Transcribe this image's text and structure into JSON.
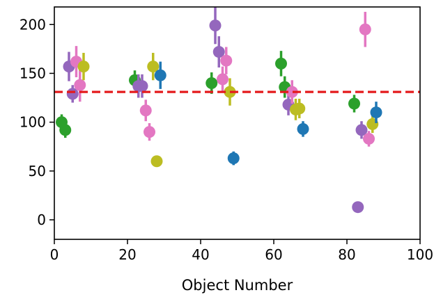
{
  "chart_data": {
    "type": "scatter",
    "title": "",
    "xlabel": "Object Number",
    "ylabel": "",
    "xlim": [
      0,
      100
    ],
    "ylim": [
      -20,
      218
    ],
    "xticks": [
      0,
      20,
      40,
      60,
      80,
      100
    ],
    "yticks": [
      0,
      50,
      100,
      150,
      200
    ],
    "grid": false,
    "reference_line": {
      "y": 131,
      "style": "dashed",
      "color": "#e41a1c"
    },
    "colors": {
      "blue": "#1f77b4",
      "green": "#2ca02c",
      "purple": "#9467bd",
      "pink": "#e377c2",
      "olive": "#bcbd22"
    },
    "points": [
      {
        "x": 2,
        "y": 100,
        "err": 8,
        "color": "green"
      },
      {
        "x": 3,
        "y": 92,
        "err": 8,
        "color": "green"
      },
      {
        "x": 4,
        "y": 157,
        "err": 15,
        "color": "purple"
      },
      {
        "x": 5,
        "y": 129,
        "err": 9,
        "color": "purple"
      },
      {
        "x": 6,
        "y": 162,
        "err": 16,
        "color": "pink"
      },
      {
        "x": 7,
        "y": 138,
        "err": 17,
        "color": "pink"
      },
      {
        "x": 8,
        "y": 157,
        "err": 14,
        "color": "olive"
      },
      {
        "x": 22,
        "y": 143,
        "err": 10,
        "color": "green"
      },
      {
        "x": 23,
        "y": 137,
        "err": 12,
        "color": "purple"
      },
      {
        "x": 24,
        "y": 137,
        "err": 12,
        "color": "purple"
      },
      {
        "x": 25,
        "y": 112,
        "err": 11,
        "color": "pink"
      },
      {
        "x": 26,
        "y": 90,
        "err": 9,
        "color": "pink"
      },
      {
        "x": 27,
        "y": 157,
        "err": 14,
        "color": "olive"
      },
      {
        "x": 28,
        "y": 60,
        "err": 0,
        "color": "olive"
      },
      {
        "x": 29,
        "y": 148,
        "err": 14,
        "color": "blue"
      },
      {
        "x": 43,
        "y": 140,
        "err": 11,
        "color": "green"
      },
      {
        "x": 44,
        "y": 199,
        "err": 19,
        "color": "purple"
      },
      {
        "x": 45,
        "y": 172,
        "err": 16,
        "color": "purple"
      },
      {
        "x": 46,
        "y": 144,
        "err": 13,
        "color": "pink"
      },
      {
        "x": 47,
        "y": 163,
        "err": 14,
        "color": "pink"
      },
      {
        "x": 48,
        "y": 131,
        "err": 14,
        "color": "olive"
      },
      {
        "x": 49,
        "y": 63,
        "err": 7,
        "color": "blue"
      },
      {
        "x": 62,
        "y": 160,
        "err": 13,
        "color": "green"
      },
      {
        "x": 63,
        "y": 136,
        "err": 11,
        "color": "green"
      },
      {
        "x": 64,
        "y": 118,
        "err": 11,
        "color": "purple"
      },
      {
        "x": 65,
        "y": 131,
        "err": 12,
        "color": "pink"
      },
      {
        "x": 66,
        "y": 113,
        "err": 11,
        "color": "olive"
      },
      {
        "x": 67,
        "y": 114,
        "err": 10,
        "color": "olive"
      },
      {
        "x": 68,
        "y": 93,
        "err": 8,
        "color": "blue"
      },
      {
        "x": 82,
        "y": 119,
        "err": 9,
        "color": "green"
      },
      {
        "x": 83,
        "y": 13,
        "err": 0,
        "color": "purple"
      },
      {
        "x": 84,
        "y": 92,
        "err": 9,
        "color": "purple"
      },
      {
        "x": 85,
        "y": 195,
        "err": 18,
        "color": "pink"
      },
      {
        "x": 86,
        "y": 83,
        "err": 8,
        "color": "pink"
      },
      {
        "x": 87,
        "y": 98,
        "err": 9,
        "color": "olive"
      },
      {
        "x": 88,
        "y": 110,
        "err": 11,
        "color": "blue"
      }
    ]
  }
}
